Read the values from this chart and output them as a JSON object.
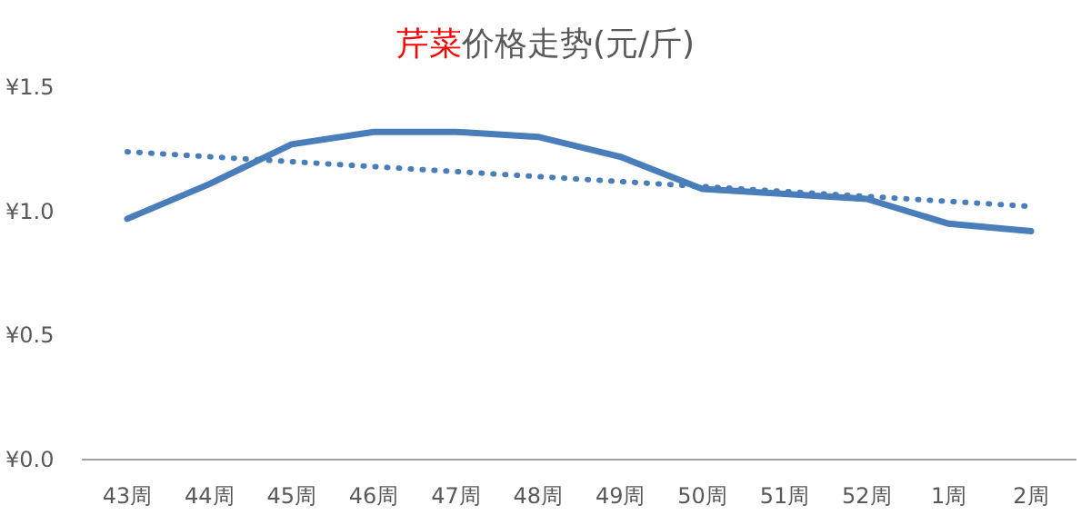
{
  "chart_data": {
    "type": "line",
    "title": "芹菜价格走势(元/斤)",
    "categories": [
      "43周",
      "44周",
      "45周",
      "46周",
      "47周",
      "48周",
      "49周",
      "50周",
      "51周",
      "52周",
      "1周",
      "2周"
    ],
    "series": [
      {
        "color": "#4a7ebb",
        "line_style": "solid",
        "values": [
          0.97,
          1.11,
          1.27,
          1.32,
          1.32,
          1.3,
          1.22,
          1.09,
          1.07,
          1.05,
          0.95,
          0.92
        ]
      },
      {
        "color": "#4a7ebb",
        "line_style": "dotted",
        "values": [
          1.24,
          1.22,
          1.2,
          1.18,
          1.16,
          1.14,
          1.12,
          1.1,
          1.08,
          1.06,
          1.04,
          1.02
        ]
      }
    ],
    "ylim": [
      0,
      1.5
    ],
    "yticks": [
      {
        "value": 0,
        "label": "¥0.0"
      },
      {
        "value": 0.5,
        "label": "¥0.5"
      },
      {
        "value": 1,
        "label": "¥1.0"
      },
      {
        "value": 1.5,
        "label": "¥1.5"
      }
    ],
    "grid": false,
    "marker": "none"
  }
}
